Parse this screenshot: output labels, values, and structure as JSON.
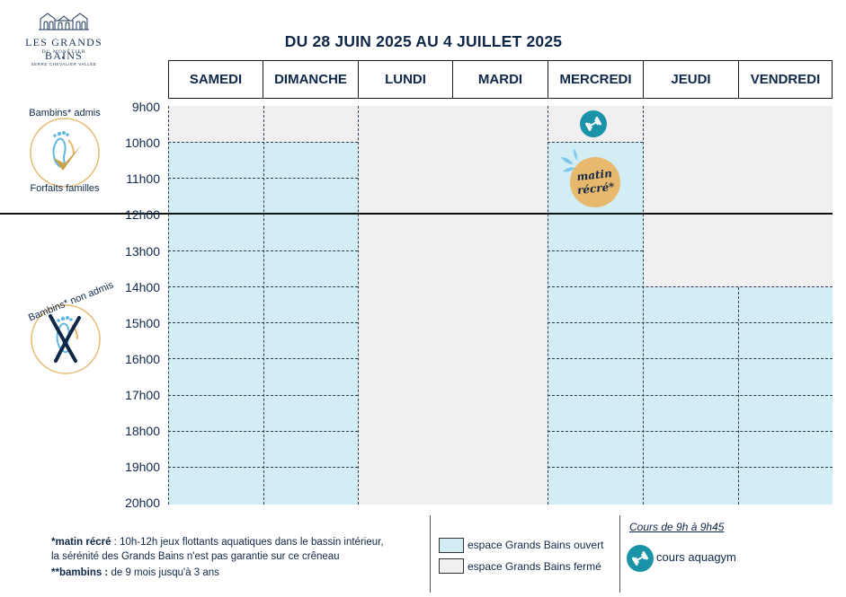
{
  "logo": {
    "name": "LES GRANDS BAINS",
    "subtitle": "DU MONÊTIER",
    "region": "SERRE CHEVALIER VALLÉE"
  },
  "title": "DU 28 JUIN 2025 AU 4 JUILLET 2025",
  "days": [
    "SAMEDI",
    "DIMANCHE",
    "LUNDI",
    "MARDI",
    "MERCREDI",
    "JEUDI",
    "VENDREDI"
  ],
  "hours": [
    "9h00",
    "10h00",
    "11h00",
    "12h00",
    "13h00",
    "14h00",
    "15h00",
    "16h00",
    "17h00",
    "18h00",
    "19h00",
    "20h00"
  ],
  "badges": {
    "admitted_top": "Bambins* admis",
    "admitted_bottom": "Forfaits familles",
    "not_admitted": "Bambins* non admis",
    "matin_line1": "matin",
    "matin_line2": "récré*"
  },
  "notes": {
    "matin_label": "*matin récré",
    "matin_text_1": " : 10h-12h jeux flottants aquatiques dans le bassin intérieur,",
    "matin_text_2": "la sérénité des Grands Bains n'est pas garantie sur ce crêneau",
    "bambins_label": "**bambins :",
    "bambins_text": " de 9 mois jusqu'à 3 ans"
  },
  "legend": {
    "open": "espace Grands Bains ouvert",
    "closed": "espace Grands Bains fermé",
    "course_time": "Cours de 9h à 9h45",
    "course_label": "cours aquagym"
  },
  "colors": {
    "open": "#d2eef4",
    "closed": "#f0f0f0",
    "aquagym": "#1a93a8",
    "matin": "#e8b86d",
    "gold": "#c9a24a",
    "navy": "#0f2748"
  },
  "icons": {
    "aquagym": "dumbbell-icon",
    "logo": "building-icon",
    "admitted": "foot-check-icon",
    "not_admitted": "foot-cross-icon"
  }
}
